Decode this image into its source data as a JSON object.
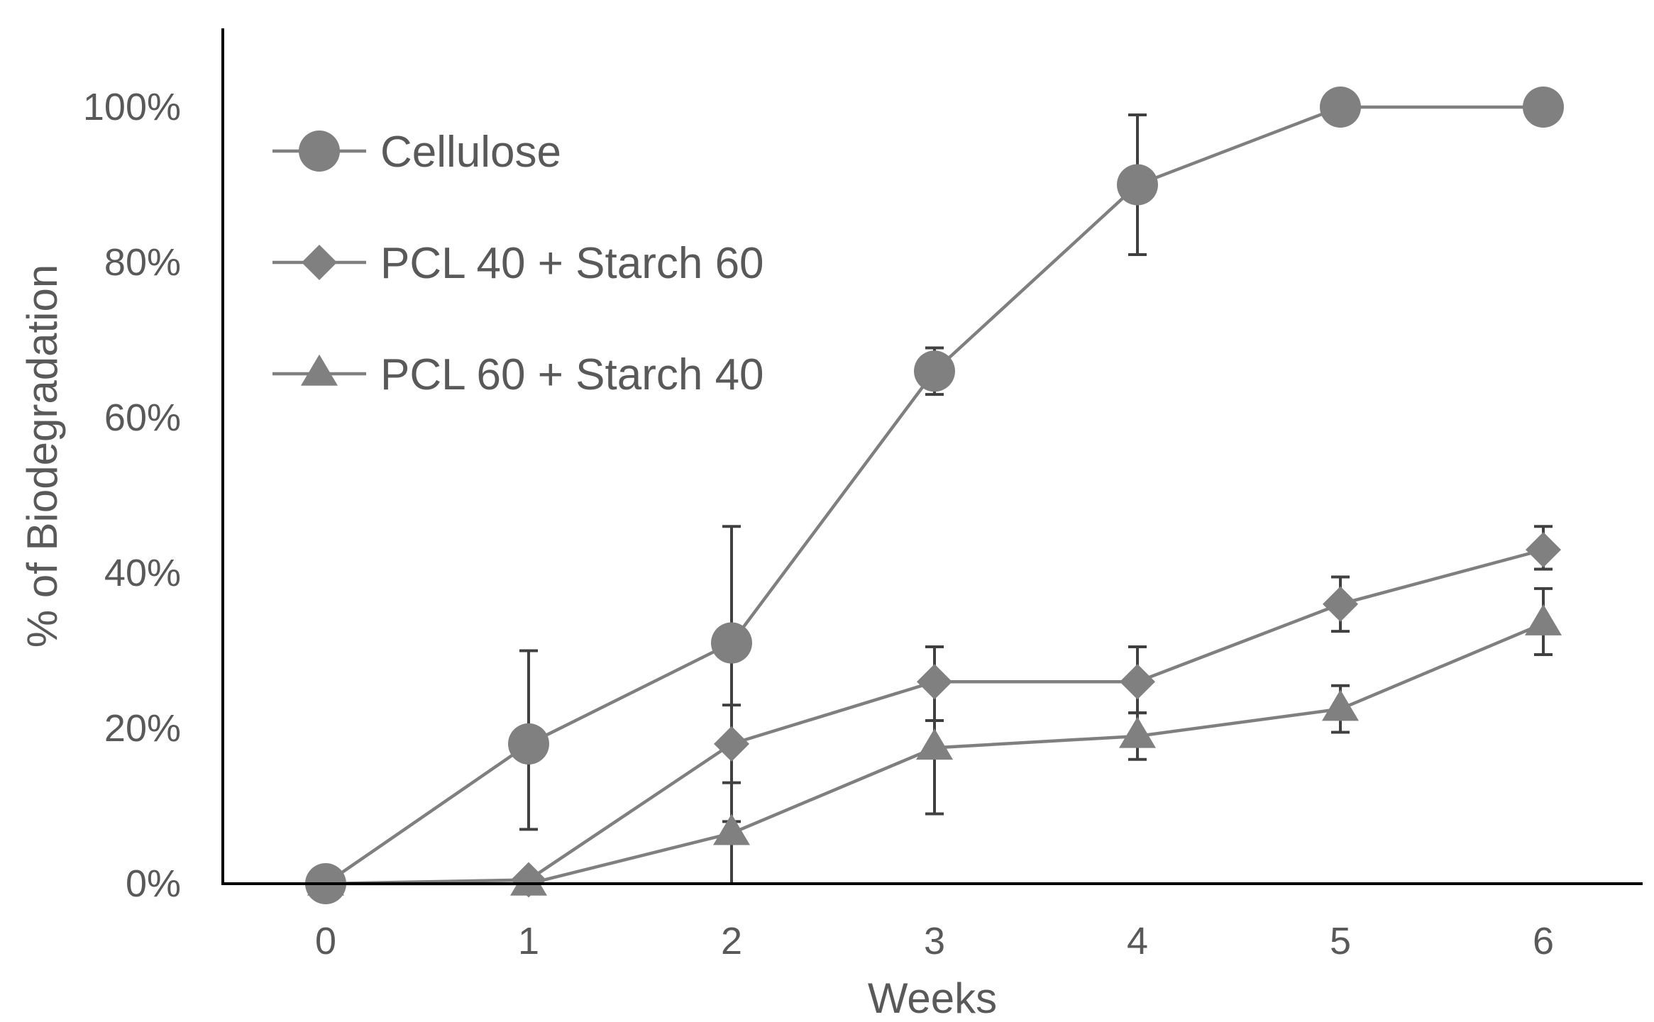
{
  "chart_data": {
    "type": "line",
    "title": "",
    "xlabel": "Weeks",
    "ylabel": "% of Biodegradation",
    "x": [
      0,
      1,
      2,
      3,
      4,
      5,
      6
    ],
    "x_tick_labels": [
      "0",
      "1",
      "2",
      "3",
      "4",
      "5",
      "6"
    ],
    "y_tick_labels": [
      "0%",
      "20%",
      "40%",
      "60%",
      "80%",
      "100%"
    ],
    "y_ticks": [
      0,
      20,
      40,
      60,
      80,
      100
    ],
    "xlim": [
      -0.5,
      6.5
    ],
    "ylim": [
      0,
      110
    ],
    "grid": false,
    "legend_position": "top-left",
    "series": [
      {
        "name": "Cellulose",
        "marker": "circle",
        "values": [
          0,
          18,
          31,
          66,
          90,
          100,
          100
        ],
        "error_low": [
          0,
          7,
          0,
          63,
          81,
          100,
          100
        ],
        "error_high": [
          0,
          30,
          46,
          69,
          99,
          100,
          100
        ]
      },
      {
        "name": "PCL 40 + Starch 60",
        "marker": "diamond",
        "values": [
          0,
          0.5,
          18,
          26,
          26,
          36,
          43
        ],
        "error_low": [
          0,
          0,
          13,
          21,
          22,
          32.5,
          40.5
        ],
        "error_high": [
          0,
          0,
          23,
          30.5,
          30.5,
          39.5,
          46
        ]
      },
      {
        "name": "PCL 60 + Starch 40",
        "marker": "triangle",
        "values": [
          0,
          0,
          6.5,
          17.5,
          19,
          22.5,
          33.5
        ],
        "error_low": [
          0,
          0,
          6,
          9,
          16,
          19.5,
          29.5
        ],
        "error_high": [
          0,
          0,
          8,
          21,
          22,
          25.5,
          38
        ]
      }
    ],
    "colors": {
      "series": "#7f7f7f",
      "marker": "#808080",
      "error_bar": "#404040",
      "axis": "#000000",
      "text": "#595959"
    }
  }
}
